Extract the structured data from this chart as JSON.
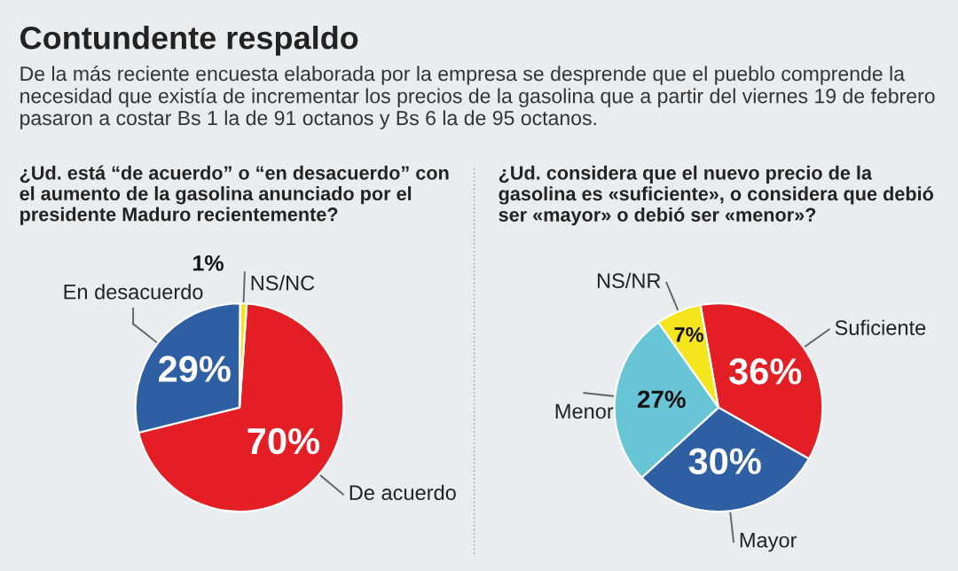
{
  "chart_data": [
    {
      "type": "pie",
      "title": "Contundente respaldo",
      "subtitle": "De la más reciente encuesta elaborada por la empresa se desprende que el pueblo comprende la necesidad que existía de incrementar los precios de la gasolina que a partir del viernes 19 de febrero pasaron a costar Bs 1 la de 91 octanos y Bs 6 la de 95 octanos.",
      "xlabel": "¿Ud. está “de acuerdo” o “en desacuerdo” con el aumento de la gasolina anunciado por el presidente Maduro recientemente?",
      "categories": [
        "De acuerdo",
        "En desacuerdo",
        "NS/NC"
      ],
      "values": [
        70,
        29,
        1
      ],
      "value_labels": [
        "70%",
        "29%",
        "1%"
      ],
      "colors": [
        "#e31e24",
        "#2e5fa3",
        "#f4e51c"
      ]
    },
    {
      "type": "pie",
      "xlabel": "¿Ud. considera que el nuevo precio de la gasolina es «suficiente», o considera que debió ser «mayor» o debió ser «menor»?",
      "categories": [
        "Suficiente",
        "Mayor",
        "Menor",
        "NS/NR"
      ],
      "values": [
        36,
        30,
        27,
        7
      ],
      "value_labels": [
        "36%",
        "30%",
        "27%",
        "7%"
      ],
      "colors": [
        "#e31e24",
        "#2e5fa3",
        "#67c5d6",
        "#f4e51c"
      ]
    }
  ]
}
